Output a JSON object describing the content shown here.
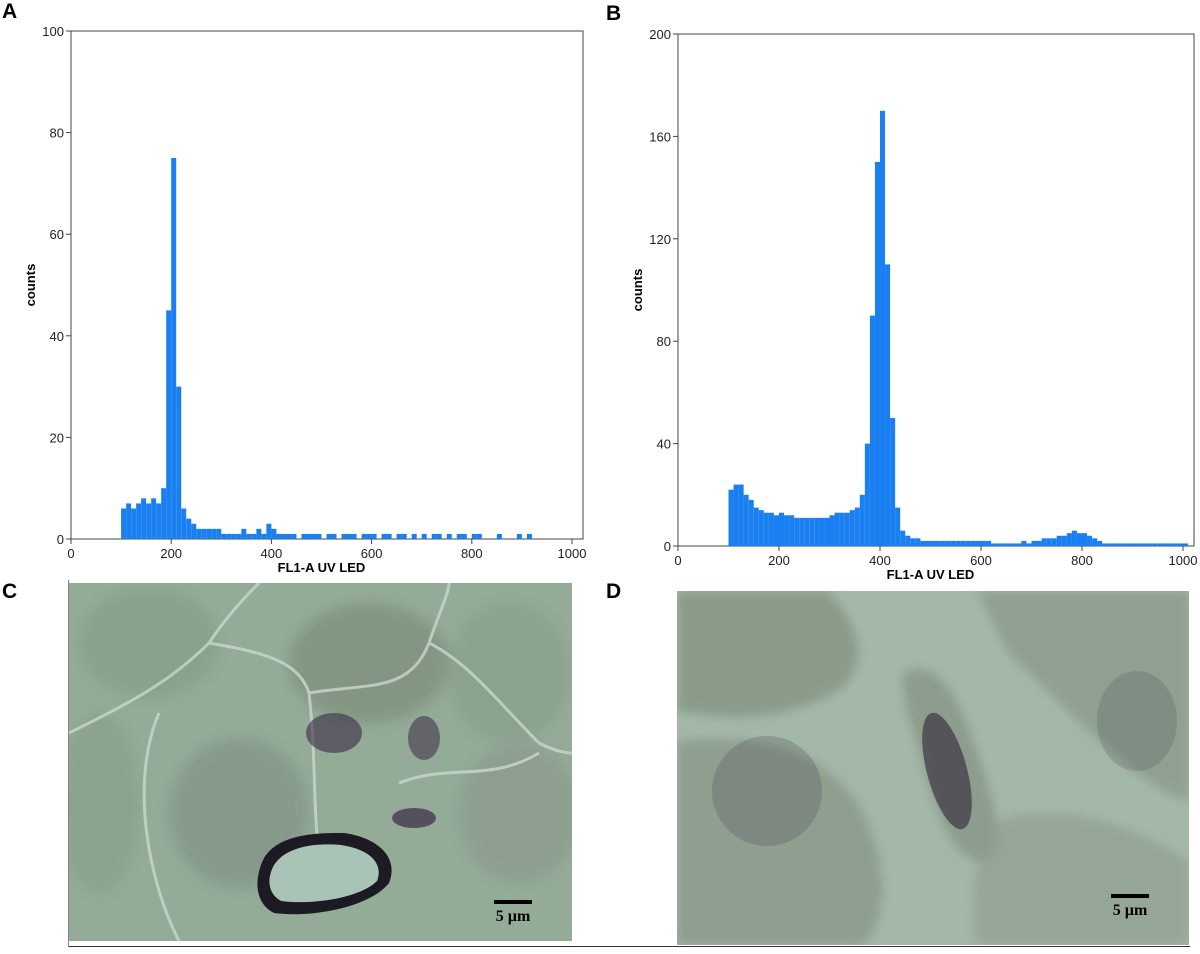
{
  "panels": {
    "a": "A",
    "b": "B",
    "c": "C",
    "d": "D"
  },
  "chart_data": [
    {
      "type": "bar",
      "panel": "A",
      "xlabel": "FL1-A  UV LED",
      "ylabel": "counts",
      "xlim": [
        0,
        1000
      ],
      "ylim": [
        0,
        100
      ],
      "xticks": [
        "0",
        "200",
        "400",
        "600",
        "800",
        "1000"
      ],
      "yticks": [
        "0",
        "20",
        "40",
        "60",
        "80",
        "100"
      ],
      "grid": false,
      "color": "#1a7ff0",
      "bin_width": 10,
      "x": [
        100,
        110,
        120,
        130,
        140,
        150,
        160,
        170,
        180,
        190,
        200,
        210,
        220,
        230,
        240,
        250,
        260,
        270,
        280,
        290,
        300,
        310,
        320,
        330,
        340,
        350,
        360,
        370,
        380,
        390,
        400,
        410,
        420,
        430,
        440,
        450,
        460,
        470,
        480,
        490,
        500,
        510,
        520,
        530,
        540,
        550,
        560,
        570,
        580,
        590,
        600,
        610,
        620,
        630,
        640,
        650,
        660,
        670,
        680,
        690,
        700,
        710,
        720,
        730,
        740,
        750,
        760,
        770,
        780,
        790,
        800,
        810,
        820,
        830,
        840,
        850,
        860,
        870,
        880,
        890,
        900,
        910
      ],
      "values": [
        6,
        7,
        6,
        7,
        8,
        7,
        8,
        7,
        10,
        45,
        75,
        30,
        6,
        4,
        3,
        2,
        2,
        2,
        2,
        2,
        1,
        1,
        1,
        1,
        2,
        1,
        1,
        2,
        1,
        3,
        2,
        1,
        1,
        1,
        1,
        0,
        1,
        1,
        1,
        1,
        0,
        1,
        1,
        0,
        1,
        1,
        1,
        0,
        1,
        1,
        1,
        0,
        1,
        1,
        0,
        1,
        1,
        0,
        1,
        0,
        1,
        0,
        1,
        1,
        0,
        1,
        0,
        1,
        1,
        0,
        1,
        1,
        0,
        0,
        0,
        1,
        0,
        0,
        0,
        1,
        0,
        1
      ]
    },
    {
      "type": "bar",
      "panel": "B",
      "xlabel": "FL1-A  UV LED",
      "ylabel": "counts",
      "xlim": [
        0,
        1000
      ],
      "ylim": [
        0,
        200
      ],
      "xticks": [
        "0",
        "200",
        "400",
        "600",
        "800",
        "1000"
      ],
      "yticks": [
        "0",
        "40",
        "80",
        "120",
        "160",
        "200"
      ],
      "grid": false,
      "color": "#1a7ff0",
      "bin_width": 10,
      "x": [
        100,
        110,
        120,
        130,
        140,
        150,
        160,
        170,
        180,
        190,
        200,
        210,
        220,
        230,
        240,
        250,
        260,
        270,
        280,
        290,
        300,
        310,
        320,
        330,
        340,
        350,
        360,
        370,
        380,
        390,
        400,
        410,
        420,
        430,
        440,
        450,
        460,
        470,
        480,
        490,
        500,
        510,
        520,
        530,
        540,
        550,
        560,
        570,
        580,
        590,
        600,
        610,
        620,
        630,
        640,
        650,
        660,
        670,
        680,
        690,
        700,
        710,
        720,
        730,
        740,
        750,
        760,
        770,
        780,
        790,
        800,
        810,
        820,
        830,
        840,
        850,
        860,
        870,
        880,
        890,
        900,
        910,
        920,
        930,
        940,
        950,
        960,
        970,
        980,
        990,
        1000
      ],
      "values": [
        22,
        24,
        24,
        20,
        18,
        15,
        14,
        13,
        13,
        12,
        13,
        12,
        12,
        11,
        11,
        11,
        11,
        11,
        11,
        11,
        12,
        13,
        13,
        13,
        14,
        15,
        20,
        40,
        90,
        150,
        170,
        110,
        50,
        15,
        6,
        4,
        3,
        3,
        2,
        2,
        2,
        2,
        2,
        2,
        2,
        2,
        2,
        2,
        2,
        2,
        2,
        2,
        1,
        1,
        1,
        1,
        1,
        1,
        2,
        1,
        2,
        2,
        3,
        3,
        3,
        4,
        4,
        5,
        6,
        5,
        5,
        4,
        3,
        2,
        1,
        1,
        1,
        1,
        1,
        1,
        1,
        1,
        1,
        1,
        1,
        1,
        1,
        1,
        1,
        1,
        1
      ]
    }
  ],
  "micrographs": {
    "c": {
      "scale_label": "5 µm"
    },
    "d": {
      "scale_label": "5 µm"
    }
  }
}
